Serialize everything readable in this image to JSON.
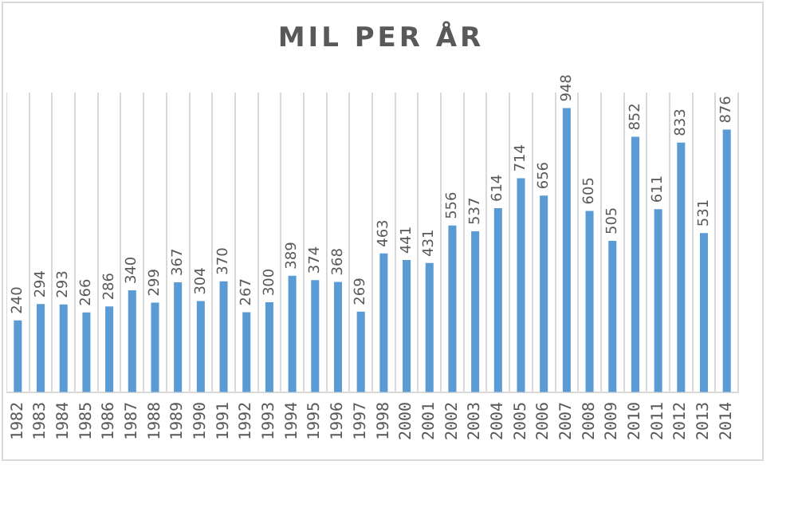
{
  "chart_data": {
    "type": "bar",
    "title": "MIL PER ÅR",
    "categories": [
      "1982",
      "1983",
      "1984",
      "1985",
      "1986",
      "1987",
      "1988",
      "1989",
      "1990",
      "1991",
      "1992",
      "1993",
      "1994",
      "1995",
      "1996",
      "1997",
      "1998",
      "2000",
      "2001",
      "2002",
      "2003",
      "2004",
      "2005",
      "2006",
      "2007",
      "2008",
      "2009",
      "2010",
      "2011",
      "2012",
      "2013",
      "2014"
    ],
    "values": [
      240,
      294,
      293,
      266,
      286,
      340,
      299,
      367,
      304,
      370,
      267,
      300,
      389,
      374,
      368,
      269,
      463,
      441,
      431,
      556,
      537,
      614,
      714,
      656,
      948,
      605,
      505,
      852,
      611,
      833,
      531,
      876
    ],
    "color": "#5b9bd5",
    "ylim": [
      0,
      1000
    ],
    "tick_labels": "x",
    "grid": "x",
    "data_labels": true,
    "legend": false
  }
}
